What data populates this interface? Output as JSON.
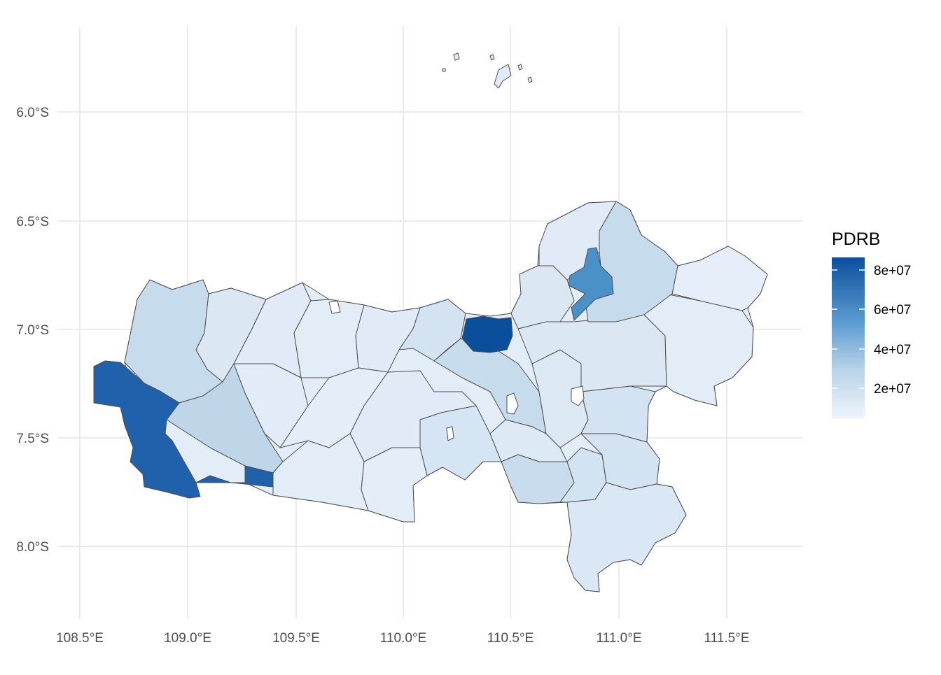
{
  "map": {
    "x_ticks": [
      "108.5°E",
      "109.0°E",
      "109.5°E",
      "110.0°E",
      "110.5°E",
      "111.0°E",
      "111.5°E"
    ],
    "y_ticks": [
      "6.0°S",
      "6.5°S",
      "7.0°S",
      "7.5°S",
      "8.0°S"
    ],
    "fill_low": "#e3edf8",
    "fill_high": "#0b4f9c",
    "grid_color": "#ebebeb",
    "border_color": "#4d4d4d"
  },
  "legend": {
    "title": "PDRB",
    "labels": [
      "8e+07",
      "6e+07",
      "4e+07",
      "2e+07"
    ]
  }
}
